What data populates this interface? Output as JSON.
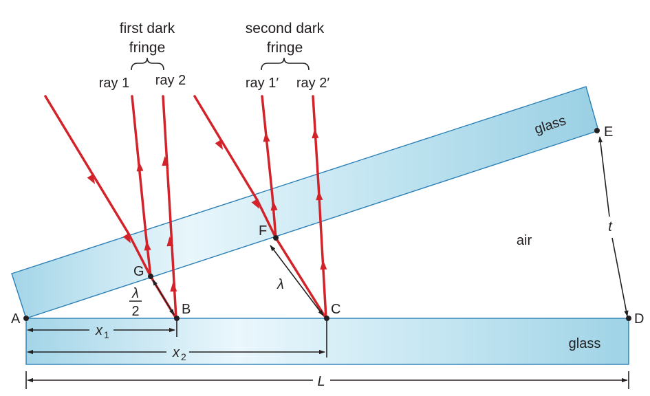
{
  "headers": {
    "first_dark_line1": "first dark",
    "first_dark_line2": "fringe",
    "second_dark_line1": "second dark",
    "second_dark_line2": "fringe"
  },
  "rays": {
    "ray1": "ray 1",
    "ray2": "ray 2",
    "ray1p": "ray 1′",
    "ray2p": "ray 2′"
  },
  "points": {
    "A": "A",
    "B": "B",
    "C": "C",
    "D": "D",
    "E": "E",
    "F": "F",
    "G": "G"
  },
  "regions": {
    "glass_top": "glass",
    "glass_bottom": "glass",
    "air": "air"
  },
  "dimensions": {
    "lambda": "λ",
    "half_lambda_num": "λ",
    "half_lambda_den": "2",
    "x1": "x",
    "x1_sub": "1",
    "x2": "x",
    "x2_sub": "2",
    "L": "L",
    "t": "t"
  },
  "colors": {
    "ray": "#d2232a",
    "glass_fill_light": "#e6f5fb",
    "glass_fill_dark": "#9fd3e6",
    "glass_edge": "#2b7fb6",
    "text": "#231f20"
  }
}
